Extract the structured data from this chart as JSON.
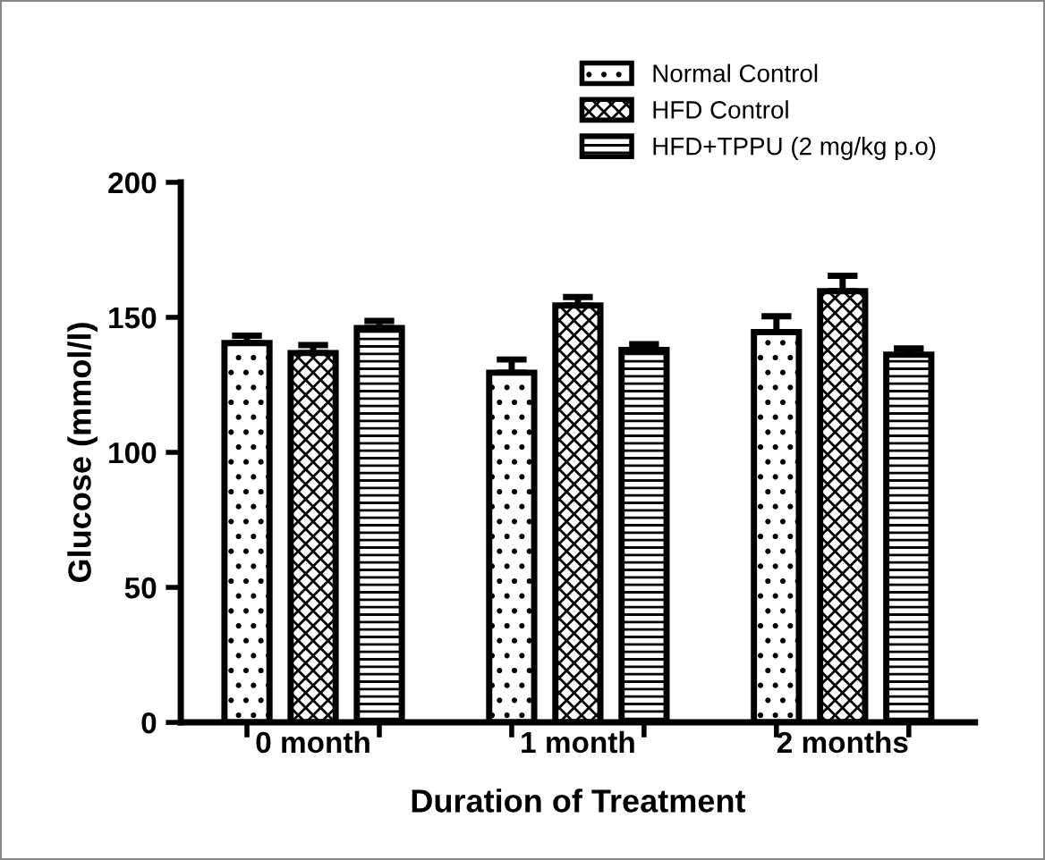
{
  "chart_data": {
    "type": "bar",
    "xlabel": "Duration of Treatment",
    "ylabel": "Glucose (mmol/l)",
    "categories": [
      "0 month",
      "1 month",
      "2 months"
    ],
    "series": [
      {
        "name": "Normal Control",
        "color": "#000000",
        "values": [
          140.5,
          129.5,
          144.5
        ],
        "errors": [
          [
            140.5,
            143.2
          ],
          [
            129.5,
            134.4
          ],
          [
            144.5,
            150.4
          ]
        ]
      },
      {
        "name": "HFD Control",
        "color": "#000000",
        "values": [
          136.8,
          154.4,
          159.7
        ],
        "errors": [
          [
            136.8,
            139.7
          ],
          [
            154.4,
            157.5
          ],
          [
            159.7,
            165.4
          ]
        ]
      },
      {
        "name": "HFD+TPPU (2 mg/kg p.o)",
        "color": "#000000",
        "values": [
          146,
          137.9,
          136.2
        ],
        "errors": [
          [
            146,
            148.7
          ],
          [
            137.9,
            140.1
          ],
          [
            136.2,
            138.5
          ]
        ]
      }
    ],
    "ylim": [
      0,
      200
    ],
    "yticks": [
      0,
      50,
      100,
      150,
      200
    ],
    "grid": false,
    "legend": "top right"
  }
}
